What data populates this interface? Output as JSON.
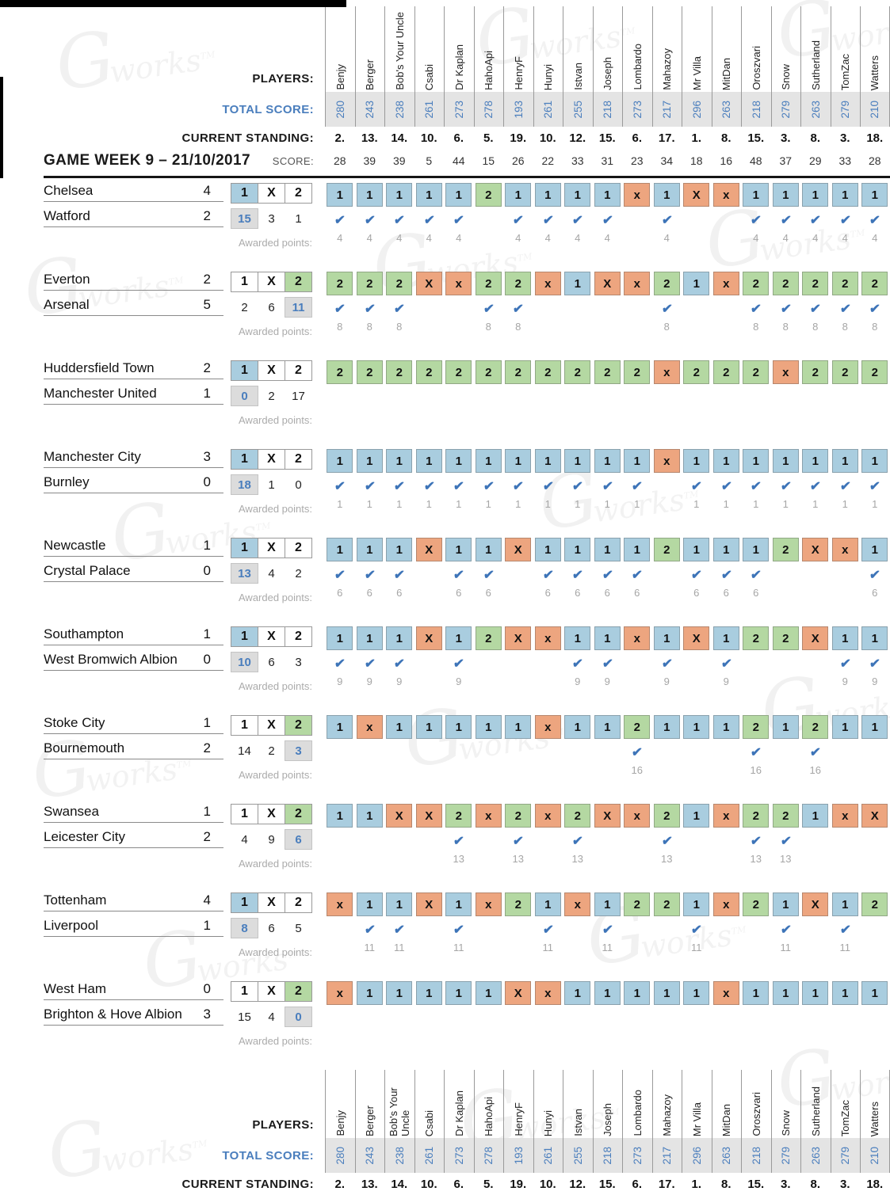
{
  "watermark": {
    "text": "works",
    "tm": "TM",
    "g": "G"
  },
  "labels": {
    "players": "PLAYERS:",
    "total_score": "TOTAL SCORE:",
    "current_standing": "CURRENT STANDING:",
    "score": "SCORE:",
    "game_week": "GAME WEEK 9 – 21/10/2017",
    "awarded_points": "Awarded points:"
  },
  "outcome_header": [
    "1",
    "X",
    "2"
  ],
  "colors": {
    "home_win": "#A9CDDF",
    "draw": "#EDA57F",
    "away_win": "#B4D8A2",
    "score_text": "#4A7EBD",
    "check": "#3D74B8"
  },
  "players": [
    {
      "name": "Benjy",
      "total": "280",
      "standing": "2.",
      "week_score": "28"
    },
    {
      "name": "Berger",
      "total": "243",
      "standing": "13.",
      "week_score": "39"
    },
    {
      "name": "Bob's Your Uncle",
      "total": "238",
      "standing": "14.",
      "week_score": "39"
    },
    {
      "name": "Csabi",
      "total": "261",
      "standing": "10.",
      "week_score": "5"
    },
    {
      "name": "Dr Kaplan",
      "total": "273",
      "standing": "6.",
      "week_score": "44"
    },
    {
      "name": "HahoApi",
      "total": "278",
      "standing": "5.",
      "week_score": "15"
    },
    {
      "name": "HenryF",
      "total": "193",
      "standing": "19.",
      "week_score": "26"
    },
    {
      "name": "Hunyi",
      "total": "261",
      "standing": "10.",
      "week_score": "22"
    },
    {
      "name": "Istvan",
      "total": "255",
      "standing": "12.",
      "week_score": "33"
    },
    {
      "name": "Joseph",
      "total": "218",
      "standing": "15.",
      "week_score": "31"
    },
    {
      "name": "Lombardo",
      "total": "273",
      "standing": "6.",
      "week_score": "23"
    },
    {
      "name": "Mahazoy",
      "total": "217",
      "standing": "17.",
      "week_score": "34"
    },
    {
      "name": "Mr Villa",
      "total": "296",
      "standing": "1.",
      "week_score": "18"
    },
    {
      "name": "MitDan",
      "total": "263",
      "standing": "8.",
      "week_score": "16"
    },
    {
      "name": "Oroszvari",
      "total": "218",
      "standing": "15.",
      "week_score": "48"
    },
    {
      "name": "Snow",
      "total": "279",
      "standing": "3.",
      "week_score": "37"
    },
    {
      "name": "Sutherland",
      "total": "263",
      "standing": "8.",
      "week_score": "29"
    },
    {
      "name": "TomZac",
      "total": "279",
      "standing": "3.",
      "week_score": "33"
    },
    {
      "name": "Watters",
      "total": "210",
      "standing": "18.",
      "week_score": "28"
    }
  ],
  "matches": [
    {
      "home": "Chelsea",
      "away": "Watford",
      "home_goals": "4",
      "away_goals": "2",
      "result": "1",
      "counts": [
        "15",
        "3",
        "1"
      ],
      "points": "4",
      "predictions": [
        "1",
        "1",
        "1",
        "1",
        "1",
        "2",
        "1",
        "1",
        "1",
        "1",
        "x",
        "1",
        "X",
        "x",
        "1",
        "1",
        "1",
        "1",
        "1"
      ]
    },
    {
      "home": "Everton",
      "away": "Arsenal",
      "home_goals": "2",
      "away_goals": "5",
      "result": "2",
      "counts": [
        "2",
        "6",
        "11"
      ],
      "points": "8",
      "predictions": [
        "2",
        "2",
        "2",
        "X",
        "x",
        "2",
        "2",
        "x",
        "1",
        "X",
        "x",
        "2",
        "1",
        "x",
        "2",
        "2",
        "2",
        "2",
        "2"
      ]
    },
    {
      "home": "Huddersfield Town",
      "away": "Manchester United",
      "home_goals": "2",
      "away_goals": "1",
      "result": "1",
      "counts": [
        "0",
        "2",
        "17"
      ],
      "points": null,
      "predictions": [
        "2",
        "2",
        "2",
        "2",
        "2",
        "2",
        "2",
        "2",
        "2",
        "2",
        "2",
        "x",
        "2",
        "2",
        "2",
        "x",
        "2",
        "2",
        "2"
      ]
    },
    {
      "home": "Manchester City",
      "away": "Burnley",
      "home_goals": "3",
      "away_goals": "0",
      "result": "1",
      "counts": [
        "18",
        "1",
        "0"
      ],
      "points": "1",
      "predictions": [
        "1",
        "1",
        "1",
        "1",
        "1",
        "1",
        "1",
        "1",
        "1",
        "1",
        "1",
        "x",
        "1",
        "1",
        "1",
        "1",
        "1",
        "1",
        "1"
      ]
    },
    {
      "home": "Newcastle",
      "away": "Crystal Palace",
      "home_goals": "1",
      "away_goals": "0",
      "result": "1",
      "counts": [
        "13",
        "4",
        "2"
      ],
      "points": "6",
      "predictions": [
        "1",
        "1",
        "1",
        "X",
        "1",
        "1",
        "X",
        "1",
        "1",
        "1",
        "1",
        "2",
        "1",
        "1",
        "1",
        "2",
        "X",
        "x",
        "1"
      ]
    },
    {
      "home": "Southampton",
      "away": "West Bromwich Albion",
      "home_goals": "1",
      "away_goals": "0",
      "result": "1",
      "counts": [
        "10",
        "6",
        "3"
      ],
      "points": "9",
      "predictions": [
        "1",
        "1",
        "1",
        "X",
        "1",
        "2",
        "X",
        "x",
        "1",
        "1",
        "x",
        "1",
        "X",
        "1",
        "2",
        "2",
        "X",
        "1",
        "1"
      ]
    },
    {
      "home": "Stoke City",
      "away": "Bournemouth",
      "home_goals": "1",
      "away_goals": "2",
      "result": "2",
      "counts": [
        "14",
        "2",
        "3"
      ],
      "points": "16",
      "predictions": [
        "1",
        "x",
        "1",
        "1",
        "1",
        "1",
        "1",
        "x",
        "1",
        "1",
        "2",
        "1",
        "1",
        "1",
        "2",
        "1",
        "2",
        "1",
        "1"
      ]
    },
    {
      "home": "Swansea",
      "away": "Leicester City",
      "home_goals": "1",
      "away_goals": "2",
      "result": "2",
      "counts": [
        "4",
        "9",
        "6"
      ],
      "points": "13",
      "predictions": [
        "1",
        "1",
        "X",
        "X",
        "2",
        "x",
        "2",
        "x",
        "2",
        "X",
        "x",
        "2",
        "1",
        "x",
        "2",
        "2",
        "1",
        "x",
        "X"
      ]
    },
    {
      "home": "Tottenham",
      "away": "Liverpool",
      "home_goals": "4",
      "away_goals": "1",
      "result": "1",
      "counts": [
        "8",
        "6",
        "5"
      ],
      "points": "11",
      "predictions": [
        "x",
        "1",
        "1",
        "X",
        "1",
        "x",
        "2",
        "1",
        "x",
        "1",
        "2",
        "2",
        "1",
        "x",
        "2",
        "1",
        "X",
        "1",
        "2"
      ]
    },
    {
      "home": "West Ham",
      "away": "Brighton & Hove Albion",
      "home_goals": "0",
      "away_goals": "3",
      "result": "2",
      "counts": [
        "15",
        "4",
        "0"
      ],
      "points": null,
      "predictions": [
        "x",
        "1",
        "1",
        "1",
        "1",
        "1",
        "X",
        "x",
        "1",
        "1",
        "1",
        "1",
        "1",
        "x",
        "1",
        "1",
        "1",
        "1",
        "1"
      ]
    }
  ]
}
